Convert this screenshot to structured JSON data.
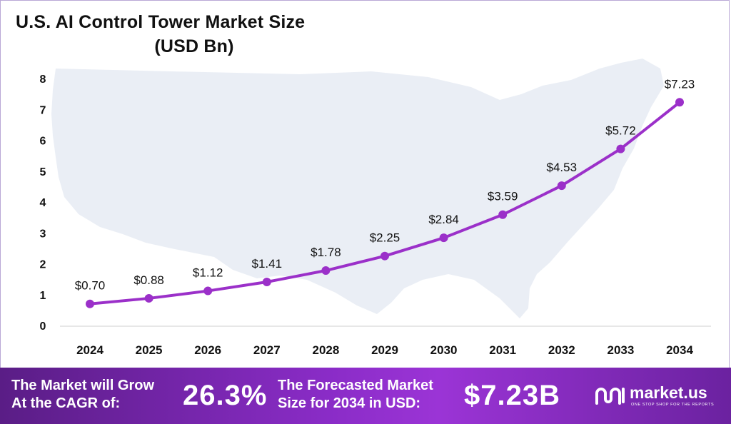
{
  "chart_data": {
    "type": "line",
    "title": "U.S. AI Control Tower Market Size",
    "subtitle": "(USD Bn)",
    "categories": [
      "2024",
      "2025",
      "2026",
      "2027",
      "2028",
      "2029",
      "2030",
      "2031",
      "2032",
      "2033",
      "2034"
    ],
    "values": [
      0.7,
      0.88,
      1.12,
      1.41,
      1.78,
      2.25,
      2.84,
      3.59,
      4.53,
      5.72,
      7.23
    ],
    "data_labels": [
      "$0.70",
      "$0.88",
      "$1.12",
      "$1.41",
      "$1.78",
      "$2.25",
      "$2.84",
      "$3.59",
      "$4.53",
      "$5.72",
      "$7.23"
    ],
    "y_ticks": [
      "0",
      "1",
      "2",
      "3",
      "4",
      "5",
      "6",
      "7",
      "8"
    ],
    "ylim": [
      0,
      8
    ],
    "xlabel": "",
    "ylabel": "",
    "grid": false,
    "line_color": "#9b30c9",
    "marker_color": "#9b30c9"
  },
  "banner": {
    "cagr_label_line1": "The Market will Grow",
    "cagr_label_line2": "At the CAGR of:",
    "cagr_value": "26.3%",
    "forecast_label_line1": "The Forecasted Market",
    "forecast_label_line2": "Size for 2034 in USD:",
    "forecast_value": "$7.23B",
    "logo_name": "market.us",
    "logo_tagline": "ONE STOP SHOP FOR THE REPORTS"
  }
}
